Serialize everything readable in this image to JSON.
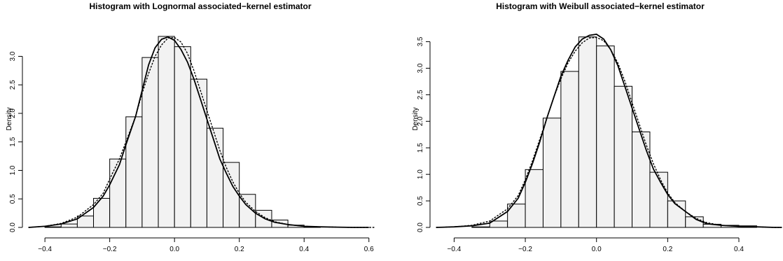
{
  "chart_data": [
    {
      "type": "histogram",
      "title": "Histogram with Lognormal associated−kernel estimator",
      "ylabel": "Density",
      "xlabel": "",
      "xlim": [
        -0.45,
        0.62
      ],
      "ylim": [
        0,
        3.35
      ],
      "x_ticks": [
        -0.4,
        -0.2,
        0.0,
        0.2,
        0.4,
        0.6
      ],
      "x_tick_labels": [
        "−0.4",
        "−0.2",
        "0.0",
        "0.2",
        "0.4",
        "0.6"
      ],
      "y_ticks": [
        0.0,
        0.5,
        1.0,
        1.5,
        2.0,
        2.5,
        3.0
      ],
      "y_tick_labels": [
        "0.0",
        "0.5",
        "1.0",
        "1.5",
        "2.0",
        "2.5",
        "3.0"
      ],
      "bin_width": 0.05,
      "bins": [
        {
          "x0": -0.4,
          "x1": -0.35,
          "density": 0.01
        },
        {
          "x0": -0.35,
          "x1": -0.3,
          "density": 0.06
        },
        {
          "x0": -0.3,
          "x1": -0.25,
          "density": 0.2
        },
        {
          "x0": -0.25,
          "x1": -0.2,
          "density": 0.51
        },
        {
          "x0": -0.2,
          "x1": -0.15,
          "density": 1.2
        },
        {
          "x0": -0.15,
          "x1": -0.1,
          "density": 1.94
        },
        {
          "x0": -0.1,
          "x1": -0.05,
          "density": 2.98
        },
        {
          "x0": -0.05,
          "x1": 0.0,
          "density": 3.35
        },
        {
          "x0": 0.0,
          "x1": 0.05,
          "density": 3.17
        },
        {
          "x0": 0.05,
          "x1": 0.1,
          "density": 2.6
        },
        {
          "x0": 0.1,
          "x1": 0.15,
          "density": 1.74
        },
        {
          "x0": 0.15,
          "x1": 0.2,
          "density": 1.14
        },
        {
          "x0": 0.2,
          "x1": 0.25,
          "density": 0.58
        },
        {
          "x0": 0.25,
          "x1": 0.3,
          "density": 0.3
        },
        {
          "x0": 0.3,
          "x1": 0.35,
          "density": 0.13
        },
        {
          "x0": 0.35,
          "x1": 0.4,
          "density": 0.04
        },
        {
          "x0": 0.4,
          "x1": 0.45,
          "density": 0.01
        }
      ],
      "series": [
        {
          "style": "solid",
          "x": [
            -0.45,
            -0.4,
            -0.35,
            -0.3,
            -0.25,
            -0.22,
            -0.2,
            -0.17,
            -0.15,
            -0.12,
            -0.1,
            -0.08,
            -0.06,
            -0.04,
            -0.02,
            0.0,
            0.02,
            0.04,
            0.06,
            0.08,
            0.1,
            0.12,
            0.14,
            0.16,
            0.18,
            0.2,
            0.22,
            0.25,
            0.28,
            0.31,
            0.35,
            0.4,
            0.45,
            0.5,
            0.55,
            0.6
          ],
          "y": [
            0.0,
            0.02,
            0.06,
            0.15,
            0.35,
            0.55,
            0.75,
            1.1,
            1.45,
            1.95,
            2.4,
            2.85,
            3.15,
            3.3,
            3.34,
            3.28,
            3.12,
            2.9,
            2.6,
            2.25,
            1.9,
            1.55,
            1.2,
            0.95,
            0.72,
            0.55,
            0.4,
            0.25,
            0.15,
            0.09,
            0.05,
            0.02,
            0.01,
            0.005,
            0.0,
            0.0
          ]
        },
        {
          "style": "dotted",
          "x": [
            -0.45,
            -0.4,
            -0.35,
            -0.3,
            -0.25,
            -0.22,
            -0.2,
            -0.17,
            -0.15,
            -0.12,
            -0.1,
            -0.08,
            -0.06,
            -0.04,
            -0.02,
            0.0,
            0.02,
            0.04,
            0.06,
            0.08,
            0.1,
            0.12,
            0.14,
            0.16,
            0.18,
            0.2,
            0.22,
            0.25,
            0.28,
            0.31,
            0.35,
            0.4,
            0.45,
            0.5,
            0.55,
            0.62
          ],
          "y": [
            0.0,
            0.02,
            0.07,
            0.18,
            0.4,
            0.6,
            0.85,
            1.2,
            1.5,
            1.95,
            2.35,
            2.7,
            3.0,
            3.2,
            3.32,
            3.33,
            3.25,
            3.05,
            2.75,
            2.4,
            2.05,
            1.7,
            1.35,
            1.05,
            0.8,
            0.6,
            0.44,
            0.28,
            0.17,
            0.1,
            0.05,
            0.02,
            0.01,
            0.005,
            0.0,
            0.0
          ]
        }
      ]
    },
    {
      "type": "histogram",
      "title": "Histogram with Weibull associated−kernel estimator",
      "ylabel": "Density",
      "xlabel": "",
      "xlim": [
        -0.45,
        0.52
      ],
      "ylim": [
        0,
        3.6
      ],
      "x_ticks": [
        -0.4,
        -0.2,
        0.0,
        0.2,
        0.4
      ],
      "x_tick_labels": [
        "−0.4",
        "−0.2",
        "0.0",
        "0.2",
        "0.4"
      ],
      "y_ticks": [
        0.0,
        0.5,
        1.0,
        1.5,
        2.0,
        2.5,
        3.0,
        3.5
      ],
      "y_tick_labels": [
        "0.0",
        "0.5",
        "1.0",
        "1.5",
        "2.0",
        "2.5",
        "3.0",
        "3.5"
      ],
      "bin_width": 0.05,
      "bins": [
        {
          "x0": -0.35,
          "x1": -0.3,
          "density": 0.01
        },
        {
          "x0": -0.3,
          "x1": -0.25,
          "density": 0.12
        },
        {
          "x0": -0.25,
          "x1": -0.2,
          "density": 0.44
        },
        {
          "x0": -0.2,
          "x1": -0.15,
          "density": 1.09
        },
        {
          "x0": -0.15,
          "x1": -0.1,
          "density": 2.06
        },
        {
          "x0": -0.1,
          "x1": -0.05,
          "density": 2.94
        },
        {
          "x0": -0.05,
          "x1": 0.0,
          "density": 3.59
        },
        {
          "x0": 0.0,
          "x1": 0.05,
          "density": 3.42
        },
        {
          "x0": 0.05,
          "x1": 0.1,
          "density": 2.66
        },
        {
          "x0": 0.1,
          "x1": 0.15,
          "density": 1.8
        },
        {
          "x0": 0.15,
          "x1": 0.2,
          "density": 1.04
        },
        {
          "x0": 0.2,
          "x1": 0.25,
          "density": 0.5
        },
        {
          "x0": 0.25,
          "x1": 0.3,
          "density": 0.2
        },
        {
          "x0": 0.3,
          "x1": 0.35,
          "density": 0.06
        },
        {
          "x0": 0.35,
          "x1": 0.4,
          "density": 0.04
        },
        {
          "x0": 0.4,
          "x1": 0.45,
          "density": 0.03
        }
      ],
      "series": [
        {
          "style": "solid",
          "x": [
            -0.45,
            -0.4,
            -0.35,
            -0.3,
            -0.25,
            -0.22,
            -0.2,
            -0.18,
            -0.16,
            -0.14,
            -0.12,
            -0.1,
            -0.08,
            -0.06,
            -0.04,
            -0.02,
            0.0,
            0.02,
            0.04,
            0.06,
            0.08,
            0.1,
            0.12,
            0.14,
            0.16,
            0.18,
            0.2,
            0.22,
            0.25,
            0.28,
            0.31,
            0.35,
            0.4,
            0.45,
            0.5,
            0.52
          ],
          "y": [
            0.0,
            0.01,
            0.03,
            0.08,
            0.3,
            0.55,
            0.85,
            1.2,
            1.6,
            2.05,
            2.45,
            2.85,
            3.15,
            3.4,
            3.55,
            3.62,
            3.64,
            3.55,
            3.35,
            3.05,
            2.65,
            2.25,
            1.85,
            1.45,
            1.1,
            0.85,
            0.62,
            0.45,
            0.3,
            0.15,
            0.07,
            0.04,
            0.02,
            0.01,
            0.0,
            0.0
          ]
        },
        {
          "style": "dotted",
          "x": [
            -0.45,
            -0.4,
            -0.35,
            -0.3,
            -0.25,
            -0.22,
            -0.2,
            -0.18,
            -0.16,
            -0.14,
            -0.12,
            -0.1,
            -0.08,
            -0.06,
            -0.04,
            -0.02,
            0.0,
            0.02,
            0.04,
            0.06,
            0.08,
            0.1,
            0.12,
            0.14,
            0.16,
            0.18,
            0.2,
            0.22,
            0.25,
            0.28,
            0.31,
            0.35,
            0.4,
            0.45,
            0.5,
            0.52
          ],
          "y": [
            0.0,
            0.01,
            0.04,
            0.12,
            0.35,
            0.6,
            0.9,
            1.25,
            1.65,
            2.05,
            2.45,
            2.8,
            3.1,
            3.32,
            3.48,
            3.57,
            3.58,
            3.52,
            3.35,
            3.1,
            2.75,
            2.35,
            1.95,
            1.55,
            1.2,
            0.9,
            0.65,
            0.47,
            0.3,
            0.17,
            0.09,
            0.04,
            0.02,
            0.01,
            0.0,
            0.0
          ]
        }
      ]
    }
  ]
}
